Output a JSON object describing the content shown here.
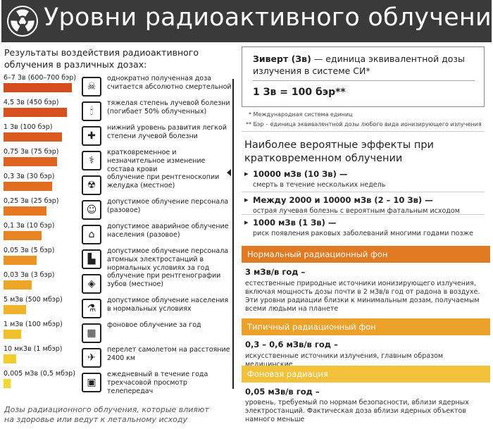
{
  "header": {
    "title": "Уровни радиоактивного облучения"
  },
  "left": {
    "title": "Результаты воздействия радиоактивного облучения в различных дозах:",
    "rows": [
      {
        "value": "6–7 Зв (600–700 бэр)",
        "fraction": 0.97,
        "color": "#d44c1e",
        "icon": "☠",
        "desc": "однократно полученная доза считается абсолютно смертельной"
      },
      {
        "value": "4,5 Зв (450 бэр)",
        "fraction": 0.9,
        "color": "#d6511f",
        "icon": "🕯",
        "desc": "тяжелая степень лучевой болезни (погибает 50% облученных)"
      },
      {
        "value": "1 Зв (100 бэр)",
        "fraction": 0.83,
        "color": "#db5a1f",
        "icon": "✚",
        "desc": "нижний уровень развития легкой степени лучевой болезни"
      },
      {
        "value": "0,75 Зв (75 бэр)",
        "fraction": 0.76,
        "color": "#de6220",
        "icon": "⚕",
        "desc": "кратковременное и незначительное изменение состава крови"
      },
      {
        "value": "0,3 Зв (30 бэр)",
        "fraction": 0.69,
        "color": "#e26d21",
        "icon": "☢",
        "desc": "облучение при рентгеноскопии желудка (местное)"
      },
      {
        "value": "0,25 Зв (25 бэр)",
        "fraction": 0.61,
        "color": "#e57822",
        "icon": "☺",
        "desc": "допустимое облучение персонала (разовое)"
      },
      {
        "value": "0,1 Зв (10 бэр)",
        "fraction": 0.54,
        "color": "#e88324",
        "icon": "⌂",
        "desc": "допустимое аварийное облучение населения (разовое)"
      },
      {
        "value": "0,05 Зв (5 бэр)",
        "fraction": 0.47,
        "color": "#eb9326",
        "icon": "▙",
        "desc": "допустимое облучение персонала атомных электростанций в нормальных условиях за год"
      },
      {
        "value": "0,03 Зв (3 бэр)",
        "fraction": 0.4,
        "color": "#eda627",
        "icon": "◈",
        "desc": "облучение при рентгенографии зубов (местное)"
      },
      {
        "value": "5 мЗв (500 мбэр)",
        "fraction": 0.32,
        "color": "#efb42a",
        "icon": "⚗",
        "desc": "допустимое облучение населения в нормальных условиях"
      },
      {
        "value": "1 мЗв (100 мбэр)",
        "fraction": 0.25,
        "color": "#f1c12c",
        "icon": "▦",
        "desc": "фоновое облучение за год"
      },
      {
        "value": "10 мкЗв (1 мбэр)",
        "fraction": 0.18,
        "color": "#f2cd2e",
        "icon": "✈",
        "desc": "перелет самолетом на расстояние 2400 км"
      },
      {
        "value": "0,005 мЗв (0,5 мбэр)",
        "fraction": 0.1,
        "color": "#f3d831",
        "icon": "▣",
        "desc": "ежедневный в течение года трехчасовой просмотр телепередач"
      }
    ],
    "footnote": "Дозы радиационного облучения, которые влияют на здоровье или ведут к летальному исходу"
  },
  "definition": {
    "term": "Зиверт (Зв)",
    "text": " — единица эквивалентной дозы излучения в системе СИ*",
    "equation": "1 Зв = 100 бэр**",
    "fn1": "* Международная система единиц",
    "fn2": "** Бэр – единица эквивалентной дозы любого вида ионизирующего излучения"
  },
  "effects": {
    "title": "Наиболее вероятные эффекты при кратковременном облучении",
    "items": [
      {
        "head": "10000 мЗв (10 Зв) —",
        "sub": "смерть в течение нескольких недель"
      },
      {
        "head": "Между 2000 и 10000 мЗв (2 – 10 Зв) —",
        "sub": "острая лучевая болезнь с вероятным фатальным исходом"
      },
      {
        "head": "1000 мЗв (1 Зв) —",
        "sub": "риск появления раковых заболеваний многими годами позже"
      }
    ]
  },
  "backgrounds": [
    {
      "band": "Нормальный радиационный фон",
      "color": "#e07a23",
      "rate": "3 мЗв/в год –",
      "desc": "естественные природные источники ионизирующего излучения, включая мощность дозы почти в 2 мЗв/в год от радона в воздухе. Эти уровни радиации близки к минимальным дозам, получаемым всеми людьми на планете"
    },
    {
      "band": "Типичный радиационный фон",
      "color": "#eba12a",
      "rate": "0,3 – 0,6 мЗв/в год –",
      "desc": "искусственные источники излучения, главным образом медицинские"
    },
    {
      "band": "Фоновая радиация",
      "color": "#f2c23b",
      "rate": "0,05 мЗв/в год –",
      "desc": "уровень, требуемый по нормам безопасности, вблизи ядерных электростанций. Фактическая доза вблизи ядерных объектов намного меньше"
    }
  ]
}
